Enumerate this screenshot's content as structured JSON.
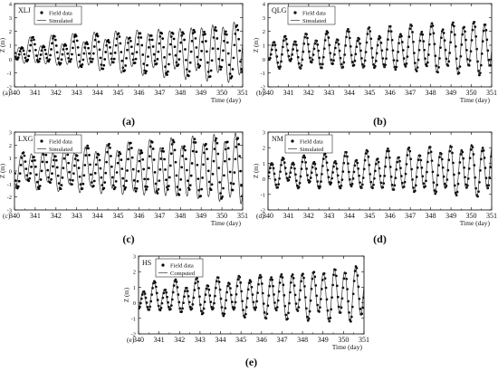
{
  "chart_data": [
    {
      "id": "a",
      "type": "scatter+line",
      "station": "XLJ",
      "corner_label": "(a)",
      "caption": "(a)",
      "xlabel": "Time (day)",
      "ylabel": "Z (m)",
      "xlim": [
        340,
        351
      ],
      "ylim": [
        -2,
        4
      ],
      "xticks": [
        340,
        341,
        342,
        343,
        344,
        345,
        346,
        347,
        348,
        349,
        350,
        351
      ],
      "yticks": [
        -2,
        -1,
        0,
        1,
        2,
        3,
        4
      ],
      "legend_position": "top-left",
      "series": [
        {
          "name": "Field data",
          "style": "points",
          "model": "tide",
          "mean": 0.5,
          "m2_start": 0.6,
          "m2_end": 1.7,
          "k1": 0.35,
          "m2_phase": 0.3,
          "k1_phase": 0.2,
          "mean_start": 0.55,
          "mean_end": 0.55
        },
        {
          "name": "Simulated",
          "style": "line",
          "model": "tide",
          "mean": 0.5,
          "m2_start": 0.65,
          "m2_end": 2.0,
          "k1": 0.35,
          "m2_phase": 0.55,
          "k1_phase": 0.3,
          "mean_start": 0.5,
          "mean_end": 0.55
        }
      ]
    },
    {
      "id": "b",
      "type": "scatter+line",
      "station": "QLG",
      "corner_label": "(b)",
      "caption": "(b)",
      "xlabel": "Time (day)",
      "ylabel": "Z (m)",
      "xlim": [
        340,
        351
      ],
      "ylim": [
        -2,
        4
      ],
      "xticks": [
        340,
        341,
        342,
        343,
        344,
        345,
        346,
        347,
        348,
        349,
        350,
        351
      ],
      "yticks": [
        -2,
        -1,
        0,
        1,
        2,
        3,
        4
      ],
      "legend_position": "top-left",
      "series": [
        {
          "name": "Field data",
          "style": "points",
          "model": "tide",
          "m2_start": 0.85,
          "m2_end": 1.75,
          "k1": 0.35,
          "m2_phase": 0.4,
          "k1_phase": 0.1,
          "mean_start": 0.5,
          "mean_end": 0.9
        },
        {
          "name": "Simulated",
          "style": "line",
          "model": "tide",
          "m2_start": 0.85,
          "m2_end": 1.75,
          "k1": 0.35,
          "m2_phase": 0.45,
          "k1_phase": 0.1,
          "mean_start": 0.5,
          "mean_end": 0.9
        }
      ]
    },
    {
      "id": "c",
      "type": "scatter+line",
      "station": "LXG",
      "corner_label": "(c)",
      "caption": "(c)",
      "xlabel": "Time (day)",
      "ylabel": "Z (m)",
      "xlim": [
        340,
        351
      ],
      "ylim": [
        -3,
        3
      ],
      "xticks": [
        340,
        341,
        342,
        343,
        344,
        345,
        346,
        347,
        348,
        349,
        350,
        351
      ],
      "yticks": [
        -3,
        -2,
        -1,
        0,
        1,
        2,
        3
      ],
      "legend_position": "top-left",
      "series": [
        {
          "name": "Field data",
          "style": "points",
          "model": "tide",
          "m2_start": 1.1,
          "m2_end": 2.2,
          "k1": 0.35,
          "m2_phase": 0.2,
          "k1_phase": 0.5,
          "mean_start": 0.1,
          "mean_end": 0.3
        },
        {
          "name": "Simulated",
          "style": "line",
          "model": "tide",
          "m2_start": 1.1,
          "m2_end": 2.5,
          "k1": 0.35,
          "m2_phase": 0.4,
          "k1_phase": 0.5,
          "mean_start": 0.1,
          "mean_end": 0.2
        }
      ]
    },
    {
      "id": "d",
      "type": "scatter+line",
      "station": "NM",
      "corner_label": "(d)",
      "caption": "(d)",
      "xlabel": "Time (day)",
      "ylabel": "Z (m)",
      "xlim": [
        340,
        351
      ],
      "ylim": [
        -2,
        3
      ],
      "xticks": [
        340,
        341,
        342,
        343,
        344,
        345,
        346,
        347,
        348,
        349,
        350,
        351
      ],
      "yticks": [
        -2,
        -1,
        0,
        1,
        2,
        3
      ],
      "legend_position": "top-left",
      "series": [
        {
          "name": "Field data",
          "style": "points",
          "model": "tide",
          "m2_start": 0.7,
          "m2_end": 1.5,
          "k1": 0.3,
          "m2_phase": 0.6,
          "k1_phase": 0.2,
          "mean_start": 0.4,
          "mean_end": 0.6
        },
        {
          "name": "Simulated",
          "style": "line",
          "model": "tide",
          "m2_start": 0.7,
          "m2_end": 1.55,
          "k1": 0.3,
          "m2_phase": 0.65,
          "k1_phase": 0.2,
          "mean_start": 0.4,
          "mean_end": 0.6
        }
      ]
    },
    {
      "id": "e",
      "type": "scatter+line",
      "station": "HS",
      "corner_label": "(e)",
      "caption": "(e)",
      "xlabel": "Time (day)",
      "ylabel": "Z (m)",
      "xlim": [
        340,
        351
      ],
      "ylim": [
        -2,
        3
      ],
      "xticks": [
        340,
        341,
        342,
        343,
        344,
        345,
        346,
        347,
        348,
        349,
        350,
        351
      ],
      "yticks": [
        -2,
        -1,
        0,
        1,
        2,
        3
      ],
      "legend_position": "top-left",
      "series": [
        {
          "name": "Field data",
          "style": "points",
          "model": "tide",
          "m2_start": 0.7,
          "m2_end": 1.6,
          "k1": 0.3,
          "m2_phase": 0.5,
          "k1_phase": 0.3,
          "mean_start": 0.3,
          "mean_end": 0.6
        },
        {
          "name": "Computed",
          "style": "line",
          "model": "tide",
          "m2_start": 0.7,
          "m2_end": 1.6,
          "k1": 0.3,
          "m2_phase": 0.55,
          "k1_phase": 0.3,
          "mean_start": 0.3,
          "mean_end": 0.6
        }
      ]
    }
  ]
}
